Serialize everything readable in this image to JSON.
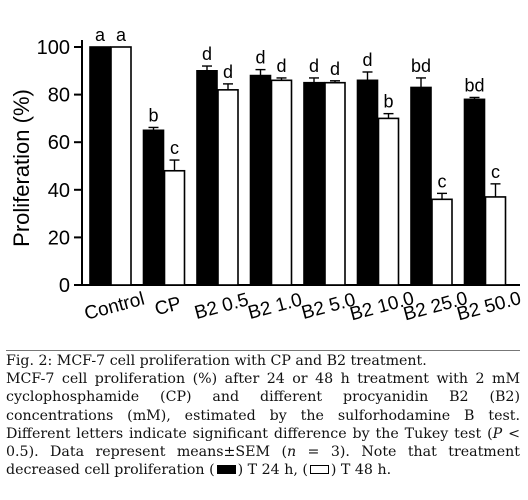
{
  "chart_data": {
    "type": "bar",
    "ylabel": "Proliferation (%)",
    "xlabel": "",
    "ylim": [
      0,
      100
    ],
    "yticks": [
      0,
      20,
      40,
      60,
      80,
      100
    ],
    "categories": [
      "Control",
      "CP",
      "B2 0.5",
      "B2 1.0",
      "B2 5.0",
      "B2 10.0",
      "B2 25.0",
      "B2 50.0"
    ],
    "series": [
      {
        "key": "t24",
        "color": "#000000",
        "values": [
          100,
          65,
          90,
          88,
          85,
          86,
          83,
          78
        ],
        "errors": [
          0,
          1.2,
          2,
          2.5,
          2,
          3.5,
          4,
          0.8
        ],
        "letters": [
          "a",
          "b",
          "d",
          "d",
          "d",
          "d",
          "bd",
          "bd"
        ]
      },
      {
        "key": "t48",
        "color": "#ffffff",
        "values": [
          100,
          48,
          82,
          86,
          85,
          70,
          36,
          37
        ],
        "errors": [
          0,
          4.5,
          2.5,
          1,
          0.8,
          2,
          2.5,
          5.5
        ],
        "letters": [
          "a",
          "c",
          "d",
          "d",
          "d",
          "b",
          "c",
          "c"
        ]
      }
    ],
    "grid": false,
    "legend": "none"
  },
  "caption": {
    "title": "Fig. 2: MCF-7 cell proliferation with CP and B2 treatment.",
    "body_main": "MCF-7 cell proliferation (%) after 24 or 48 h treatment with 2 mM cyclophosphamide (CP) and different procyanidin B2 (B2) concentrations (mM), estimated by the sulforhodamine B test. Different letters indicate significant difference by the Tukey test (",
    "p_symbol": "P",
    "p_text": " < 0.5). Data represent means±SEM (",
    "n_symbol": "n",
    "n_text": " = 3). Note that treatment decreased cell proliferation ",
    "legend_24_open": "(",
    "legend_24_close": ") T 24 h, (",
    "legend_48_close": ") T 48 h."
  }
}
